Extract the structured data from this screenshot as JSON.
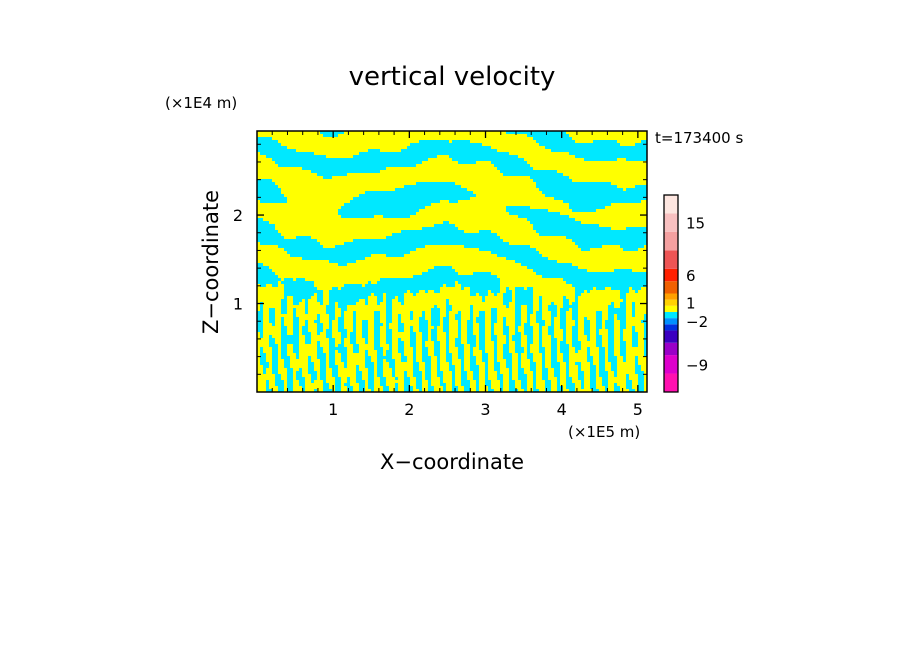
{
  "chart_data": {
    "type": "heatmap",
    "title": "vertical velocity",
    "xlabel": "X−coordinate",
    "ylabel": "Z−coordinate",
    "x_unit": "(×1E5 m)",
    "y_unit": "(×1E4 m)",
    "time_label": "t=173400 s",
    "xlim": [
      0,
      5.12
    ],
    "ylim": [
      0,
      2.95
    ],
    "x_ticks": [
      {
        "value": 1,
        "label": "1"
      },
      {
        "value": 2,
        "label": "2"
      },
      {
        "value": 3,
        "label": "3"
      },
      {
        "value": 4,
        "label": "4"
      },
      {
        "value": 5,
        "label": "5"
      }
    ],
    "y_ticks": [
      {
        "value": 1,
        "label": "1"
      },
      {
        "value": 2,
        "label": "2"
      }
    ],
    "field_colors": {
      "positive": "#ffff00",
      "negative": "#00e8ff"
    },
    "colorbar": {
      "levels": [
        {
          "value": -12,
          "color": "#ff10b0"
        },
        {
          "value": -9,
          "color": "#dd00cc"
        },
        {
          "value": -6,
          "color": "#9a00c8"
        },
        {
          "value": -4,
          "color": "#3b00c0"
        },
        {
          "value": -3,
          "color": "#0030e0"
        },
        {
          "value": -2,
          "color": "#0090ff"
        },
        {
          "value": -1,
          "color": "#00e8ff"
        },
        {
          "value": 0,
          "color": "#ffff00"
        },
        {
          "value": 1,
          "color": "#ffd200"
        },
        {
          "value": 2,
          "color": "#ffa000"
        },
        {
          "value": 4,
          "color": "#f06000"
        },
        {
          "value": 6,
          "color": "#ff2000"
        },
        {
          "value": 10,
          "color": "#ee5555"
        },
        {
          "value": 12,
          "color": "#f4a0a0"
        },
        {
          "value": 15,
          "color": "#f8c0c0"
        },
        {
          "value": 18,
          "color": "#fde6e0"
        }
      ],
      "tick_labels": [
        {
          "value": 15,
          "label": "15"
        },
        {
          "value": 6,
          "label": "6"
        },
        {
          "value": 1,
          "label": "1"
        },
        {
          "value": -2,
          "label": "−2"
        },
        {
          "value": -9,
          "label": "−9"
        }
      ]
    }
  }
}
